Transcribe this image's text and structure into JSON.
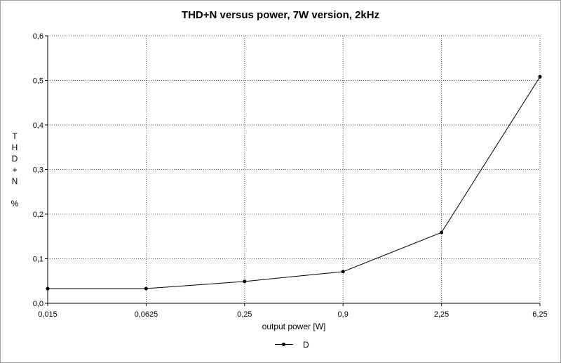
{
  "chart_data": {
    "type": "line",
    "title": "THD+N versus power, 7W version, 2kHz",
    "xlabel": "output power [W]",
    "ylabel": [
      "T",
      "H",
      "D",
      "+",
      "N",
      "",
      "%"
    ],
    "categories": [
      "0,015",
      "0,0625",
      "0,25",
      "0,9",
      "2,25",
      "6,25"
    ],
    "series": [
      {
        "name": "D",
        "values": [
          0.033,
          0.033,
          0.049,
          0.071,
          0.159,
          0.508
        ],
        "color": "#000000"
      }
    ],
    "y_ticks": [
      "0,0",
      "0,1",
      "0,2",
      "0,3",
      "0,4",
      "0,5",
      "0,6"
    ],
    "ylim": [
      0,
      0.6
    ],
    "grid": true,
    "legend": "bottom-center"
  }
}
